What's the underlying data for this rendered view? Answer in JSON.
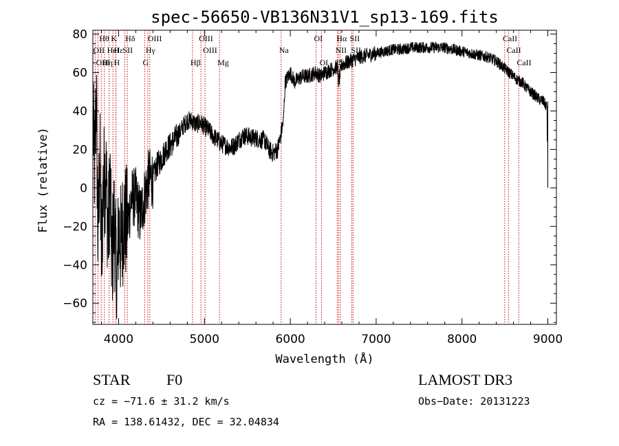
{
  "chart_data": {
    "type": "line",
    "title": "spec-56650-VB136N31V1_sp13-169.fits",
    "xlabel": "Wavelength (Å)",
    "ylabel": "Flux (relative)",
    "xlim": [
      3700,
      9100
    ],
    "ylim": [
      -71,
      82
    ],
    "x_ticks": [
      4000,
      5000,
      6000,
      7000,
      8000,
      9000
    ],
    "y_ticks": [
      -60,
      -40,
      -20,
      0,
      20,
      40,
      60,
      80
    ],
    "grid": false,
    "line_color": "#000000",
    "marker_color": "#cc0000",
    "spectrum_anchors": [
      [
        3700,
        40
      ],
      [
        3720,
        10
      ],
      [
        3740,
        50
      ],
      [
        3760,
        -30
      ],
      [
        3780,
        20
      ],
      [
        3800,
        -35
      ],
      [
        3820,
        0
      ],
      [
        3850,
        10
      ],
      [
        3880,
        -25
      ],
      [
        3900,
        5
      ],
      [
        3920,
        -40
      ],
      [
        3950,
        -15
      ],
      [
        3980,
        -55
      ],
      [
        4000,
        -20
      ],
      [
        4030,
        -30
      ],
      [
        4060,
        -15
      ],
      [
        4100,
        -20
      ],
      [
        4150,
        -5
      ],
      [
        4200,
        -5
      ],
      [
        4250,
        -15
      ],
      [
        4300,
        -5
      ],
      [
        4350,
        5
      ],
      [
        4400,
        5
      ],
      [
        4450,
        12
      ],
      [
        4500,
        15
      ],
      [
        4550,
        20
      ],
      [
        4600,
        22
      ],
      [
        4650,
        25
      ],
      [
        4700,
        28
      ],
      [
        4750,
        32
      ],
      [
        4800,
        35
      ],
      [
        4850,
        35
      ],
      [
        4900,
        33
      ],
      [
        4950,
        34
      ],
      [
        5000,
        32
      ],
      [
        5050,
        30
      ],
      [
        5100,
        27
      ],
      [
        5150,
        25
      ],
      [
        5200,
        23
      ],
      [
        5250,
        22
      ],
      [
        5300,
        21
      ],
      [
        5350,
        22
      ],
      [
        5400,
        25
      ],
      [
        5450,
        27
      ],
      [
        5500,
        27
      ],
      [
        5550,
        26
      ],
      [
        5600,
        26
      ],
      [
        5650,
        25
      ],
      [
        5700,
        25
      ],
      [
        5750,
        20
      ],
      [
        5800,
        18
      ],
      [
        5850,
        20
      ],
      [
        5880,
        25
      ],
      [
        5920,
        35
      ],
      [
        5940,
        55
      ],
      [
        6000,
        60
      ],
      [
        6050,
        55
      ],
      [
        6100,
        57
      ],
      [
        6150,
        58
      ],
      [
        6200,
        58
      ],
      [
        6250,
        59
      ],
      [
        6300,
        60
      ],
      [
        6350,
        58
      ],
      [
        6400,
        60
      ],
      [
        6450,
        61
      ],
      [
        6500,
        62
      ],
      [
        6550,
        63
      ],
      [
        6563,
        55
      ],
      [
        6600,
        64
      ],
      [
        6650,
        65
      ],
      [
        6700,
        66
      ],
      [
        6750,
        67
      ],
      [
        6800,
        68
      ],
      [
        6900,
        69
      ],
      [
        7000,
        70
      ],
      [
        7100,
        71
      ],
      [
        7200,
        72
      ],
      [
        7300,
        72
      ],
      [
        7400,
        73
      ],
      [
        7500,
        73
      ],
      [
        7600,
        73
      ],
      [
        7700,
        73
      ],
      [
        7800,
        73
      ],
      [
        7900,
        72
      ],
      [
        8000,
        71
      ],
      [
        8100,
        70
      ],
      [
        8200,
        69
      ],
      [
        8300,
        68
      ],
      [
        8400,
        66
      ],
      [
        8450,
        64
      ],
      [
        8500,
        62
      ],
      [
        8550,
        60
      ],
      [
        8600,
        58
      ],
      [
        8650,
        56
      ],
      [
        8700,
        55
      ],
      [
        8750,
        52
      ],
      [
        8800,
        50
      ],
      [
        8850,
        48
      ],
      [
        8900,
        46
      ],
      [
        8950,
        45
      ],
      [
        8990,
        42
      ],
      [
        9000,
        0
      ]
    ],
    "line_markers": [
      {
        "label": "Hθ",
        "x": 3798,
        "row": 0
      },
      {
        "label": "K",
        "x": 3934,
        "row": 0
      },
      {
        "label": "Hδ",
        "x": 4102,
        "row": 0
      },
      {
        "label": "OIII",
        "x": 4363,
        "row": 0
      },
      {
        "label": "OIII",
        "x": 4959,
        "row": 0
      },
      {
        "label": "OI",
        "x": 6300,
        "row": 0
      },
      {
        "label": "Hα",
        "x": 6563,
        "row": 0
      },
      {
        "label": "SII",
        "x": 6716,
        "row": 0
      },
      {
        "label": "CaII",
        "x": 8498,
        "row": 0
      },
      {
        "label": "OII",
        "x": 3727,
        "row": 1
      },
      {
        "label": "Hε",
        "x": 3970,
        "row": 1
      },
      {
        "label": "HeI",
        "x": 3889,
        "row": 1
      },
      {
        "label": "SII",
        "x": 4072,
        "row": 1
      },
      {
        "label": "Hγ",
        "x": 4340,
        "row": 1
      },
      {
        "label": "OIII",
        "x": 5007,
        "row": 1
      },
      {
        "label": "Na",
        "x": 5893,
        "row": 1
      },
      {
        "label": "NII",
        "x": 6548,
        "row": 1
      },
      {
        "label": "SII",
        "x": 6731,
        "row": 1
      },
      {
        "label": "CaII",
        "x": 8542,
        "row": 1
      },
      {
        "label": "OIII",
        "x": 3760,
        "row": 2
      },
      {
        "label": "Hη",
        "x": 3835,
        "row": 2
      },
      {
        "label": "H",
        "x": 3968,
        "row": 2
      },
      {
        "label": "G",
        "x": 4304,
        "row": 2
      },
      {
        "label": "Hβ",
        "x": 4861,
        "row": 2
      },
      {
        "label": "Mg",
        "x": 5175,
        "row": 2
      },
      {
        "label": "OI",
        "x": 6364,
        "row": 2
      },
      {
        "label": "NII",
        "x": 6583,
        "row": 2
      },
      {
        "label": "CaII",
        "x": 8662,
        "row": 2
      }
    ]
  },
  "info": {
    "object_class": "STAR",
    "subclass": "F0",
    "survey": "LAMOST DR3",
    "cz": "cz = −71.6 ± 31.2 km/s",
    "obs_date": "Obs−Date: 20131223",
    "coords": "RA = 138.61432, DEC =  32.04834"
  }
}
